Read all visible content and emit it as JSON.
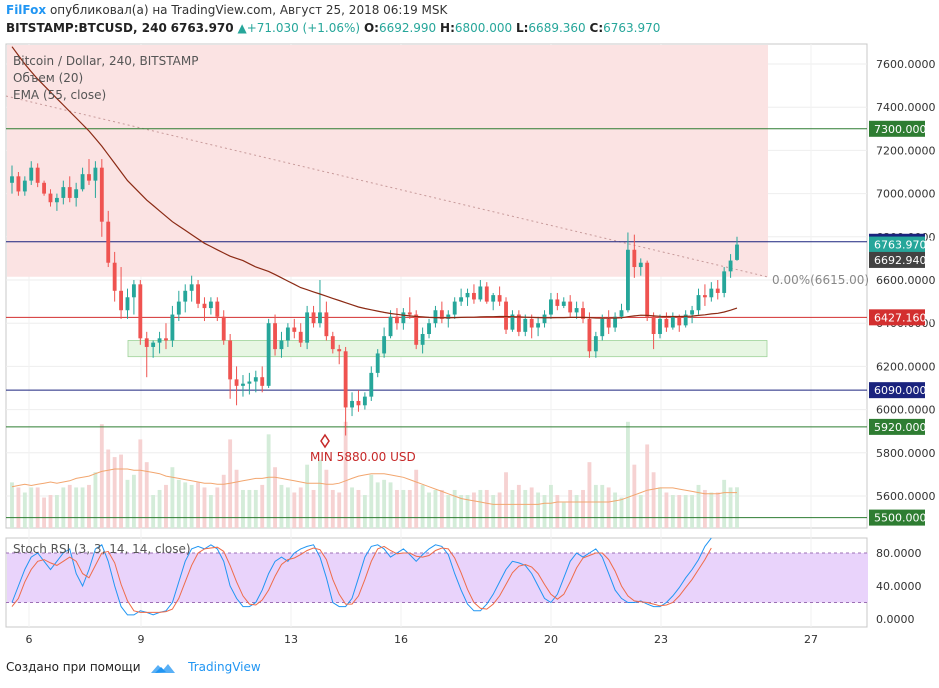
{
  "header": {
    "brand": "FilFox",
    "published_text": "опубликовал(а) на TradingView.com, Август 25, 2018 06:19 MSK",
    "symbol": "BITSTAMP:BTCUSD, 240",
    "last": "6763.970",
    "change": "+71.030 (+1.06%)",
    "o_label": "O:",
    "o": "6692.990",
    "h_label": "H:",
    "h": "6800.000",
    "l_label": "L:",
    "l": "6689.360",
    "c_label": "C:",
    "c": "6763.970"
  },
  "legend": {
    "main": "Bitcoin / Dollar, 240, BITSTAMP",
    "volume": "Объем (20)",
    "ema": "EMA (55, close)",
    "stoch": "Stoch RSI (3, 3, 14, 14, close)"
  },
  "annotations": {
    "min_label": "MIN 5880.00 USD",
    "fib_label": "0.00%(6615.00)"
  },
  "footer": {
    "created_with": "Создано при помощи",
    "brand": "TradingView"
  },
  "colors": {
    "up": "#26a69a",
    "down": "#ef5350",
    "ema": "#8b2a14",
    "hline_green": "#2e7d32",
    "hline_blue": "#1a237e",
    "hline_red": "#d32f2f",
    "zone": "#fbe3e3",
    "stoch_band": "#e9d3fb"
  },
  "chart_data": {
    "type": "candlestick",
    "interval": "240",
    "x_tick_labels": [
      "6",
      "9",
      "13",
      "16",
      "20",
      "23",
      "27"
    ],
    "y_tick_labels": [
      "7600.0000",
      "7400.0000",
      "7200.0000",
      "7000.0000",
      "6800.0000",
      "6600.0000",
      "6400.0000",
      "6200.0000",
      "6000.0000",
      "5800.0000",
      "5600.0000"
    ],
    "price_range": [
      5500,
      7700
    ],
    "horizontal_levels": [
      {
        "label": "7300.0000",
        "value": 7300,
        "color": "#2e7d32"
      },
      {
        "label": "6777.0000",
        "value": 6777,
        "color": "#1a237e"
      },
      {
        "label": "6427.1600",
        "value": 6427.16,
        "color": "#d32f2f"
      },
      {
        "label": "6090.0000",
        "value": 6090,
        "color": "#1a237e"
      },
      {
        "label": "5920.0000",
        "value": 5920,
        "color": "#2e7d32"
      },
      {
        "label": "5500.0000",
        "value": 5500,
        "color": "#2e7d32"
      }
    ],
    "price_tags": [
      {
        "label": "6763.9700",
        "value": 6763.97,
        "color": "#26a69a"
      },
      {
        "label": "6692.9400",
        "value": 6692.94,
        "color": "#424242"
      }
    ],
    "resistance_zone": [
      6615,
      7700
    ],
    "support_zone": [
      6245,
      6320
    ],
    "min_low": 5880,
    "candles": [
      [
        7050,
        7130,
        7000,
        7080
      ],
      [
        7080,
        7100,
        6990,
        7010
      ],
      [
        7010,
        7080,
        6990,
        7060
      ],
      [
        7060,
        7150,
        7040,
        7120
      ],
      [
        7120,
        7140,
        7030,
        7050
      ],
      [
        7050,
        7060,
        6990,
        7000
      ],
      [
        7000,
        7020,
        6940,
        6960
      ],
      [
        6960,
        7000,
        6920,
        6980
      ],
      [
        6980,
        7060,
        6950,
        7030
      ],
      [
        7030,
        7080,
        6960,
        6980
      ],
      [
        6980,
        7050,
        6940,
        7020
      ],
      [
        7020,
        7120,
        7010,
        7090
      ],
      [
        7090,
        7160,
        7040,
        7060
      ],
      [
        7060,
        7150,
        6980,
        7120
      ],
      [
        7120,
        7160,
        6800,
        6870
      ],
      [
        6870,
        6920,
        6660,
        6680
      ],
      [
        6680,
        6730,
        6500,
        6550
      ],
      [
        6550,
        6660,
        6420,
        6460
      ],
      [
        6460,
        6560,
        6420,
        6520
      ],
      [
        6520,
        6600,
        6440,
        6580
      ],
      [
        6580,
        6600,
        6300,
        6330
      ],
      [
        6330,
        6360,
        6150,
        6290
      ],
      [
        6290,
        6320,
        6240,
        6310
      ],
      [
        6310,
        6360,
        6260,
        6330
      ],
      [
        6330,
        6400,
        6280,
        6320
      ],
      [
        6320,
        6480,
        6290,
        6440
      ],
      [
        6440,
        6550,
        6410,
        6500
      ],
      [
        6500,
        6580,
        6450,
        6550
      ],
      [
        6550,
        6620,
        6500,
        6580
      ],
      [
        6580,
        6600,
        6470,
        6490
      ],
      [
        6490,
        6520,
        6410,
        6470
      ],
      [
        6470,
        6520,
        6440,
        6500
      ],
      [
        6500,
        6520,
        6410,
        6430
      ],
      [
        6430,
        6460,
        6300,
        6320
      ],
      [
        6320,
        6350,
        6050,
        6140
      ],
      [
        6140,
        6200,
        6020,
        6110
      ],
      [
        6110,
        6160,
        6060,
        6120
      ],
      [
        6120,
        6170,
        6070,
        6130
      ],
      [
        6130,
        6180,
        6080,
        6150
      ],
      [
        6150,
        6200,
        6080,
        6110
      ],
      [
        6110,
        6420,
        6100,
        6400
      ],
      [
        6400,
        6440,
        6250,
        6280
      ],
      [
        6280,
        6360,
        6240,
        6320
      ],
      [
        6320,
        6400,
        6290,
        6380
      ],
      [
        6380,
        6420,
        6330,
        6360
      ],
      [
        6360,
        6400,
        6290,
        6310
      ],
      [
        6310,
        6480,
        6280,
        6450
      ],
      [
        6450,
        6480,
        6380,
        6400
      ],
      [
        6400,
        6600,
        6380,
        6450
      ],
      [
        6450,
        6500,
        6320,
        6340
      ],
      [
        6340,
        6360,
        6260,
        6280
      ],
      [
        6280,
        6300,
        6210,
        6270
      ],
      [
        6270,
        6290,
        5880,
        6010
      ],
      [
        6010,
        6080,
        5970,
        6040
      ],
      [
        6040,
        6090,
        5990,
        6020
      ],
      [
        6020,
        6080,
        6000,
        6060
      ],
      [
        6060,
        6200,
        6040,
        6170
      ],
      [
        6170,
        6280,
        6150,
        6260
      ],
      [
        6260,
        6380,
        6240,
        6340
      ],
      [
        6340,
        6460,
        6330,
        6430
      ],
      [
        6430,
        6470,
        6370,
        6400
      ],
      [
        6400,
        6470,
        6370,
        6450
      ],
      [
        6450,
        6520,
        6420,
        6440
      ],
      [
        6440,
        6460,
        6280,
        6300
      ],
      [
        6300,
        6380,
        6260,
        6350
      ],
      [
        6350,
        6420,
        6330,
        6400
      ],
      [
        6400,
        6480,
        6380,
        6460
      ],
      [
        6460,
        6500,
        6400,
        6420
      ],
      [
        6420,
        6460,
        6380,
        6440
      ],
      [
        6440,
        6520,
        6420,
        6500
      ],
      [
        6500,
        6560,
        6480,
        6520
      ],
      [
        6520,
        6560,
        6480,
        6540
      ],
      [
        6540,
        6580,
        6490,
        6510
      ],
      [
        6510,
        6600,
        6500,
        6570
      ],
      [
        6570,
        6590,
        6490,
        6500
      ],
      [
        6500,
        6540,
        6460,
        6530
      ],
      [
        6530,
        6570,
        6480,
        6500
      ],
      [
        6500,
        6520,
        6350,
        6370
      ],
      [
        6370,
        6460,
        6360,
        6440
      ],
      [
        6440,
        6460,
        6340,
        6360
      ],
      [
        6360,
        6440,
        6340,
        6420
      ],
      [
        6420,
        6440,
        6330,
        6380
      ],
      [
        6380,
        6430,
        6340,
        6400
      ],
      [
        6400,
        6460,
        6380,
        6440
      ],
      [
        6440,
        6540,
        6420,
        6510
      ],
      [
        6510,
        6540,
        6460,
        6480
      ],
      [
        6480,
        6520,
        6470,
        6500
      ],
      [
        6500,
        6530,
        6430,
        6450
      ],
      [
        6450,
        6500,
        6420,
        6470
      ],
      [
        6470,
        6500,
        6400,
        6420
      ],
      [
        6420,
        6450,
        6240,
        6270
      ],
      [
        6270,
        6360,
        6240,
        6340
      ],
      [
        6340,
        6440,
        6320,
        6420
      ],
      [
        6420,
        6460,
        6350,
        6380
      ],
      [
        6380,
        6450,
        6360,
        6430
      ],
      [
        6430,
        6490,
        6420,
        6460
      ],
      [
        6460,
        6820,
        6450,
        6740
      ],
      [
        6740,
        6810,
        6610,
        6660
      ],
      [
        6660,
        6700,
        6620,
        6680
      ],
      [
        6680,
        6690,
        6410,
        6430
      ],
      [
        6430,
        6450,
        6280,
        6350
      ],
      [
        6350,
        6440,
        6330,
        6420
      ],
      [
        6420,
        6450,
        6360,
        6380
      ],
      [
        6380,
        6450,
        6370,
        6430
      ],
      [
        6430,
        6440,
        6360,
        6390
      ],
      [
        6390,
        6460,
        6380,
        6440
      ],
      [
        6440,
        6480,
        6400,
        6460
      ],
      [
        6460,
        6560,
        6440,
        6530
      ],
      [
        6530,
        6580,
        6480,
        6520
      ],
      [
        6520,
        6590,
        6500,
        6560
      ],
      [
        6560,
        6600,
        6510,
        6540
      ],
      [
        6540,
        6660,
        6520,
        6640
      ],
      [
        6640,
        6720,
        6610,
        6690
      ],
      [
        6692.99,
        6800,
        6689.36,
        6763.97
      ]
    ],
    "ema_55": [
      7680,
      7640,
      7600,
      7565,
      7530,
      7500,
      7470,
      7440,
      7410,
      7380,
      7350,
      7320,
      7290,
      7255,
      7220,
      7180,
      7140,
      7100,
      7060,
      7030,
      7000,
      6970,
      6945,
      6920,
      6895,
      6870,
      6850,
      6830,
      6810,
      6790,
      6770,
      6755,
      6740,
      6725,
      6710,
      6700,
      6690,
      6675,
      6660,
      6650,
      6640,
      6625,
      6610,
      6595,
      6580,
      6565,
      6555,
      6545,
      6535,
      6525,
      6515,
      6505,
      6495,
      6485,
      6475,
      6468,
      6462,
      6456,
      6450,
      6445,
      6441,
      6437,
      6434,
      6431,
      6429,
      6427,
      6426,
      6425,
      6425,
      6426,
      6427,
      6428,
      6428,
      6429,
      6430,
      6430,
      6431,
      6431,
      6430,
      6429,
      6428,
      6427,
      6426,
      6425,
      6425,
      6426,
      6426,
      6427,
      6427,
      6427,
      6426,
      6424,
      6423,
      6423,
      6424,
      6425,
      6430,
      6434,
      6437,
      6436,
      6434,
      6432,
      6431,
      6431,
      6431,
      6432,
      6433,
      6436,
      6439,
      6443,
      6446,
      6452,
      6460,
      6470
    ],
    "volume_ma_20": [
      0.35,
      0.36,
      0.37,
      0.36,
      0.37,
      0.38,
      0.39,
      0.38,
      0.39,
      0.4,
      0.42,
      0.43,
      0.44,
      0.46,
      0.48,
      0.49,
      0.5,
      0.5,
      0.5,
      0.49,
      0.49,
      0.48,
      0.47,
      0.46,
      0.44,
      0.43,
      0.42,
      0.41,
      0.4,
      0.39,
      0.38,
      0.38,
      0.37,
      0.37,
      0.38,
      0.39,
      0.4,
      0.41,
      0.42,
      0.42,
      0.43,
      0.43,
      0.42,
      0.41,
      0.4,
      0.39,
      0.38,
      0.38,
      0.38,
      0.37,
      0.37,
      0.38,
      0.4,
      0.42,
      0.44,
      0.45,
      0.46,
      0.46,
      0.46,
      0.45,
      0.44,
      0.43,
      0.41,
      0.39,
      0.37,
      0.35,
      0.33,
      0.31,
      0.29,
      0.27,
      0.25,
      0.24,
      0.23,
      0.22,
      0.21,
      0.2,
      0.2,
      0.2,
      0.2,
      0.2,
      0.2,
      0.2,
      0.2,
      0.21,
      0.21,
      0.22,
      0.22,
      0.22,
      0.22,
      0.22,
      0.22,
      0.22,
      0.22,
      0.22,
      0.23,
      0.24,
      0.26,
      0.28,
      0.3,
      0.32,
      0.33,
      0.34,
      0.34,
      0.34,
      0.33,
      0.32,
      0.31,
      0.3,
      0.29,
      0.29,
      0.29,
      0.3,
      0.3,
      0.3
    ],
    "stoch_rsi": {
      "levels": [
        80,
        20
      ],
      "y_tick_labels": [
        "80.0000",
        "40.0000",
        "0.0000"
      ],
      "k": [
        20,
        40,
        60,
        75,
        80,
        70,
        60,
        70,
        80,
        85,
        55,
        40,
        60,
        85,
        90,
        70,
        40,
        15,
        5,
        5,
        10,
        8,
        5,
        8,
        10,
        20,
        45,
        70,
        85,
        88,
        85,
        90,
        85,
        70,
        40,
        25,
        15,
        15,
        20,
        35,
        55,
        70,
        75,
        70,
        80,
        85,
        88,
        90,
        75,
        50,
        20,
        15,
        15,
        25,
        50,
        75,
        88,
        90,
        85,
        75,
        80,
        85,
        78,
        70,
        78,
        85,
        90,
        88,
        78,
        55,
        35,
        18,
        10,
        10,
        18,
        30,
        45,
        60,
        70,
        68,
        65,
        55,
        40,
        25,
        20,
        30,
        50,
        70,
        80,
        75,
        80,
        85,
        75,
        55,
        35,
        25,
        20,
        20,
        22,
        18,
        15,
        15,
        20,
        28,
        38,
        50,
        60,
        72,
        88,
        98
      ],
      "d": [
        15,
        25,
        45,
        60,
        70,
        72,
        68,
        65,
        70,
        75,
        70,
        55,
        50,
        65,
        80,
        82,
        68,
        42,
        22,
        10,
        8,
        8,
        8,
        8,
        9,
        12,
        25,
        45,
        65,
        80,
        85,
        86,
        87,
        82,
        65,
        45,
        28,
        18,
        17,
        23,
        35,
        52,
        66,
        72,
        74,
        78,
        83,
        86,
        84,
        72,
        48,
        30,
        18,
        18,
        28,
        48,
        70,
        85,
        88,
        83,
        79,
        80,
        80,
        76,
        75,
        77,
        83,
        86,
        85,
        74,
        56,
        36,
        20,
        13,
        12,
        18,
        28,
        42,
        56,
        64,
        66,
        63,
        55,
        42,
        30,
        24,
        30,
        45,
        62,
        74,
        77,
        80,
        80,
        72,
        58,
        40,
        28,
        22,
        21,
        20,
        18,
        16,
        17,
        20,
        28,
        38,
        48,
        60,
        72,
        86
      ]
    }
  }
}
